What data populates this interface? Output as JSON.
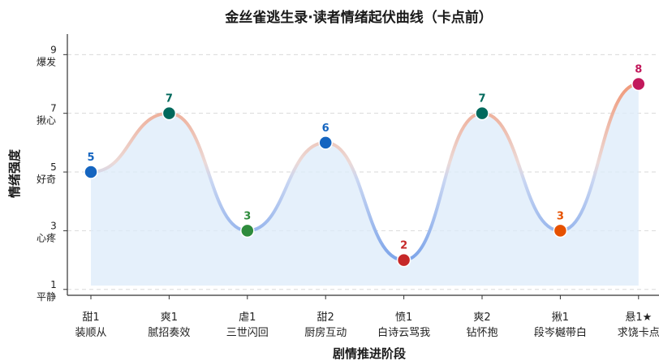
{
  "chart_data": {
    "type": "line",
    "title": "金丝雀逃生录·读者情绪起伏曲线（卡点前）",
    "xlabel": "剧情推进阶段",
    "ylabel": "情绪强度",
    "ylim": [
      0.8,
      9.7
    ],
    "yticks": [
      {
        "value": 1,
        "num": "1",
        "label": "平静"
      },
      {
        "value": 3,
        "num": "3",
        "label": "心疼"
      },
      {
        "value": 5,
        "num": "5",
        "label": "好奇"
      },
      {
        "value": 7,
        "num": "7",
        "label": "揪心"
      },
      {
        "value": 9,
        "num": "9",
        "label": "爆发"
      }
    ],
    "grid": true,
    "categories": [
      {
        "line1": "甜1",
        "line2": "装顺从"
      },
      {
        "line1": "爽1",
        "line2": "腻招奏效"
      },
      {
        "line1": "虐1",
        "line2": "三世闪回"
      },
      {
        "line1": "甜2",
        "line2": "厨房互动"
      },
      {
        "line1": "愤1",
        "line2": "白诗云骂我"
      },
      {
        "line1": "爽2",
        "line2": "钻怀抱"
      },
      {
        "line1": "揪1",
        "line2": "段岑樾带白"
      },
      {
        "line1": "悬1★",
        "line2": "求饶卡点"
      }
    ],
    "values": [
      5,
      7,
      3,
      6,
      2,
      7,
      3,
      8
    ],
    "value_labels": [
      "5",
      "7",
      "3",
      "6",
      "2",
      "7",
      "3",
      "8"
    ],
    "point_colors": [
      "#1565c0",
      "#00695c",
      "#2e8b3c",
      "#1565c0",
      "#c62828",
      "#00695c",
      "#e65100",
      "#c2185b"
    ],
    "colors": {
      "high": "#f0997a",
      "low": "#7fa6ea",
      "fill": "#dcebfa"
    }
  }
}
